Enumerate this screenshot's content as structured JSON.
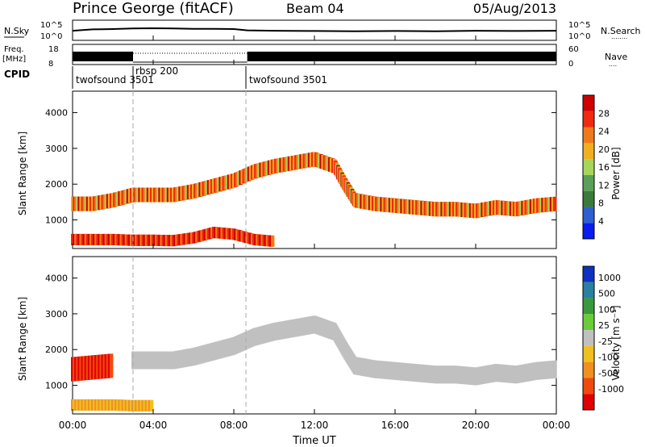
{
  "header": {
    "station": "Prince George (fitACF)",
    "beam": "Beam 04",
    "date": "05/Aug/2013"
  },
  "colors": {
    "power_scale": [
      "#0a1cf0",
      "#2f5fd0",
      "#3a7a3a",
      "#5aa05a",
      "#a6d65a",
      "#f0b020",
      "#f07a1a",
      "#f02a10",
      "#d00000"
    ],
    "velocity_scale": [
      "#1030c0",
      "#2a80a0",
      "#3a9a3a",
      "#6acc3a",
      "#c0c0c0",
      "#f0c020",
      "#f09020",
      "#f04a10",
      "#e00000"
    ],
    "noise_trace": "#000000",
    "dashed_marker": "#aaaaaa"
  },
  "chart_data": [
    {
      "type": "line",
      "panel": "noise",
      "ylabels_left": [
        "N.Sky",
        "10^5",
        "10^0"
      ],
      "ylabels_right": [
        "10^5",
        "10^0",
        "N.Search",
        "........"
      ],
      "series": [
        {
          "name": "N.Sky",
          "x": [
            "00:00",
            "01:00",
            "02:00",
            "03:00",
            "04:00",
            "05:00",
            "06:00",
            "07:00",
            "08:00",
            "08:40",
            "10:00",
            "12:00",
            "14:00",
            "16:00",
            "18:00",
            "20:00",
            "22:00",
            "24:00"
          ],
          "values": [
            300,
            800,
            1000,
            1500,
            1800,
            1500,
            1200,
            1100,
            1000,
            400,
            300,
            250,
            200,
            250,
            200,
            300,
            250,
            300
          ]
        }
      ]
    },
    {
      "type": "bar",
      "panel": "frequency",
      "ylabels_left": [
        "Freq.",
        "[MHz]",
        "18",
        "8"
      ],
      "ylabels_right": [
        "60",
        "0",
        "Nave",
        "...."
      ],
      "description_segments": [
        {
          "from": "00:00",
          "to": "03:00",
          "mode": "solid"
        },
        {
          "from": "03:00",
          "to": "08:40",
          "mode": "dotted"
        },
        {
          "from": "08:40",
          "to": "24:00",
          "mode": "solid"
        }
      ]
    },
    {
      "type": "table",
      "panel": "cpid",
      "label": "CPID",
      "segments": [
        {
          "start": "00:00",
          "label": "twofsound 3501"
        },
        {
          "start": "03:00",
          "label": "rbsp 200"
        },
        {
          "start": "08:40",
          "label": "twofsound 3501"
        }
      ]
    },
    {
      "type": "heatmap",
      "panel": "power",
      "ylabel": "Slant Range [km]",
      "yticks": [
        1000,
        2000,
        3000,
        4000
      ],
      "ylim": [
        200,
        4600
      ],
      "colorbar_label": "Power [dB]",
      "colorbar_ticks": [
        4,
        8,
        12,
        16,
        20,
        24,
        28
      ],
      "features": [
        {
          "name": "near-range band",
          "t": [
            0,
            1,
            2,
            3,
            4,
            5,
            6,
            7,
            8,
            9,
            10
          ],
          "range_km": [
            450,
            450,
            450,
            430,
            430,
            420,
            500,
            650,
            600,
            450,
            400
          ],
          "level_db": 28
        },
        {
          "name": "main echo band",
          "t": [
            0,
            1,
            2,
            3,
            4,
            5,
            6,
            7,
            8,
            9,
            10,
            11,
            12,
            13,
            13.5,
            14,
            15,
            16,
            17,
            18,
            19,
            20,
            21,
            22,
            23,
            24
          ],
          "range_km": [
            1450,
            1450,
            1550,
            1700,
            1700,
            1700,
            1800,
            1950,
            2100,
            2350,
            2500,
            2600,
            2700,
            2500,
            2000,
            1550,
            1450,
            1400,
            1350,
            1300,
            1300,
            1250,
            1350,
            1300,
            1400,
            1450
          ],
          "level_db": 24
        }
      ]
    },
    {
      "type": "heatmap",
      "panel": "velocity",
      "ylabel": "Slant Range [km]",
      "yticks": [
        1000,
        2000,
        3000,
        4000
      ],
      "ylim": [
        200,
        4600
      ],
      "colorbar_label": "Velocity [m s⁻¹]",
      "colorbar_ticks": [
        1000,
        500,
        100,
        25,
        -25,
        -100,
        -500,
        -1000
      ],
      "features": [
        {
          "name": "near-range flow",
          "t": [
            0,
            1,
            2,
            3,
            4
          ],
          "range_km": [
            450,
            450,
            450,
            430,
            430
          ],
          "velocity": -100
        },
        {
          "name": "dawn flow",
          "t": [
            0,
            1,
            2
          ],
          "range_km": [
            1450,
            1500,
            1550
          ],
          "velocity": -1000
        },
        {
          "name": "ground scatter band",
          "t": [
            3,
            4,
            5,
            6,
            7,
            8,
            9,
            10,
            11,
            12,
            13,
            13.5,
            14,
            15,
            16,
            17,
            18,
            19,
            20,
            21,
            22,
            23,
            24
          ],
          "range_km": [
            1700,
            1700,
            1700,
            1800,
            1950,
            2100,
            2350,
            2500,
            2600,
            2700,
            2500,
            2000,
            1550,
            1450,
            1400,
            1350,
            1300,
            1300,
            1250,
            1350,
            1300,
            1400,
            1450
          ],
          "velocity": 0
        }
      ]
    }
  ],
  "x_axis": {
    "label": "Time UT",
    "ticks": [
      "00:00",
      "04:00",
      "08:00",
      "12:00",
      "16:00",
      "20:00",
      "00:00"
    ]
  }
}
